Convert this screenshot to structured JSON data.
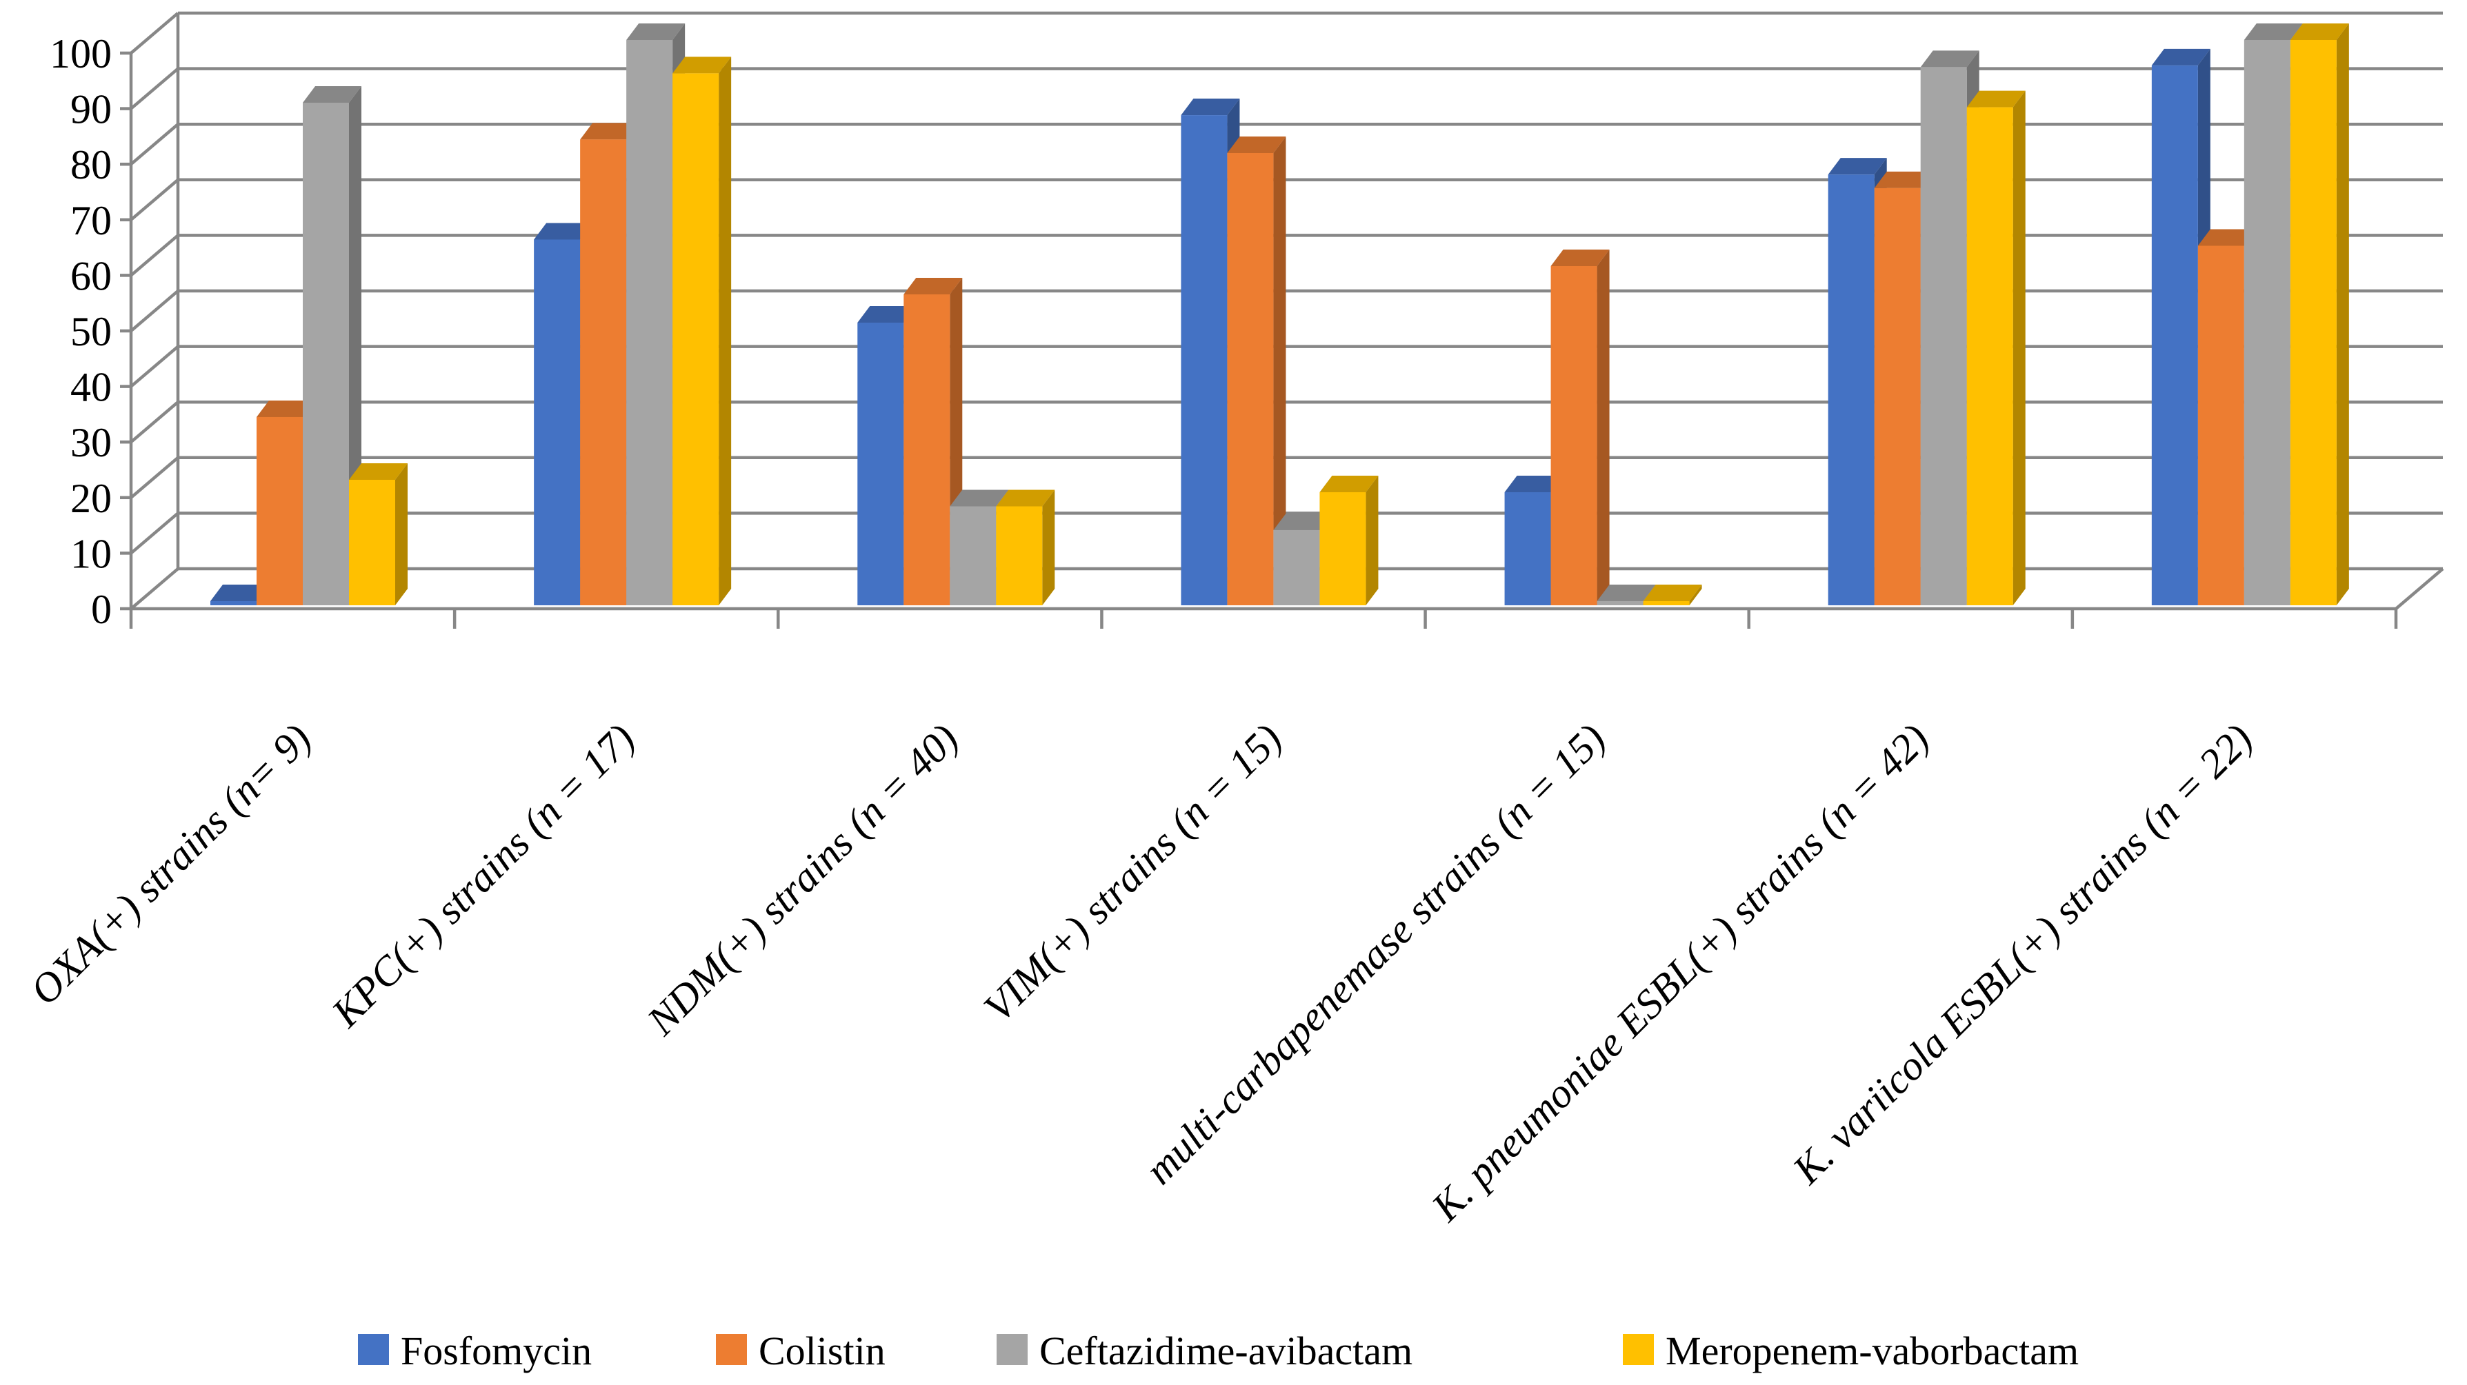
{
  "chart_data": {
    "type": "bar",
    "projection": "3d-column",
    "title": "",
    "xlabel": "",
    "ylabel": "",
    "categories": [
      "OXA(+) strains (n= 9)",
      "KPC(+) strains (n = 17)",
      "NDM(+) strains (n = 40)",
      "VIM(+) strains (n = 15)",
      "multi-carbapenemase strains (n = 15)",
      "K. pneumoniae ESBL(+) strains (n = 42)",
      "K. variicola ESBL(+) strains (n = 22)"
    ],
    "series": [
      {
        "name": "Fosfomycin",
        "color": "#4472C4",
        "values": [
          0,
          64.7,
          50,
          86.7,
          20,
          76.2,
          95.5
        ]
      },
      {
        "name": "Colistin",
        "color": "#ED7D31",
        "values": [
          33.3,
          82.4,
          55,
          80,
          60,
          73.8,
          63.6
        ]
      },
      {
        "name": "Ceftazidime-avibactam",
        "color": "#A5A5A5",
        "values": [
          88.9,
          100,
          17.5,
          13.3,
          0,
          95.2,
          100
        ]
      },
      {
        "name": "Meropenem-vaborbactam",
        "color": "#FFC000",
        "values": [
          22.2,
          94.1,
          17.5,
          20,
          0,
          88.1,
          100
        ]
      }
    ],
    "ylim": [
      0,
      100
    ],
    "ytick_step": 10,
    "yticks": [
      "0",
      "10",
      "20",
      "30",
      "40",
      "50",
      "60",
      "70",
      "80",
      "90",
      "100"
    ],
    "grid": true,
    "legend_position": "bottom",
    "axis_color": "#878787",
    "text_color": "#000000",
    "background_color": "#FFFFFF"
  }
}
